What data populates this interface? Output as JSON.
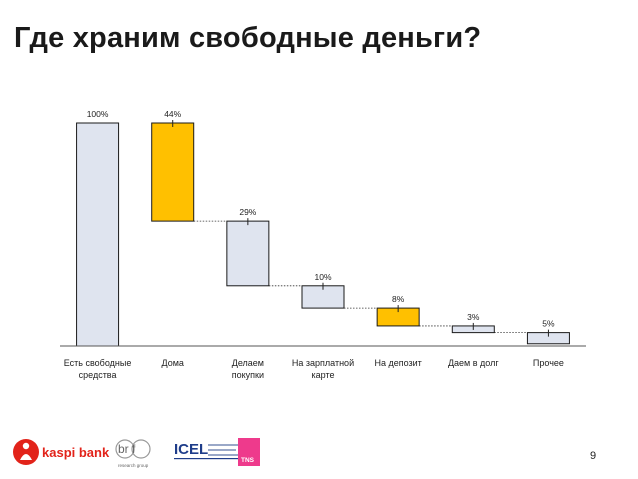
{
  "slide": {
    "title": "Где храним свободные деньги?",
    "page_number": "9"
  },
  "logos": {
    "kaspi": "kaspi bank",
    "brif": "br f",
    "brif_sub": "research group",
    "icel": "ICEL",
    "tns": "TNS"
  },
  "colors": {
    "neutral_fill": "#dfe4ef",
    "highlight_fill": "#ffc000",
    "bar_stroke": "#1a1a1a",
    "kaspi_red": "#e2231a"
  },
  "chart_data": {
    "type": "bar",
    "subtype": "waterfall",
    "title": "Где храним свободные деньги?",
    "categories": [
      "Есть свободные средства",
      "Дома",
      "Делаем покупки",
      "На зарплатной карте",
      "На депозит",
      "Даем в долг",
      "Прочее"
    ],
    "category_labels": [
      [
        "Есть свободные",
        "средства"
      ],
      [
        "Дома"
      ],
      [
        "Делаем",
        "покупки"
      ],
      [
        "На зарплатной",
        "карте"
      ],
      [
        "На депозит"
      ],
      [
        "Даем в долг"
      ],
      [
        "Прочее"
      ]
    ],
    "values": [
      100,
      44,
      29,
      10,
      8,
      3,
      5
    ],
    "value_labels": [
      "100%",
      "44%",
      "29%",
      "10%",
      "8%",
      "3%",
      "5%"
    ],
    "highlighted": [
      false,
      true,
      false,
      false,
      true,
      false,
      false
    ],
    "ylim": [
      0,
      100
    ],
    "xlabel": "",
    "ylabel": "",
    "grid": false,
    "legend": "none"
  }
}
